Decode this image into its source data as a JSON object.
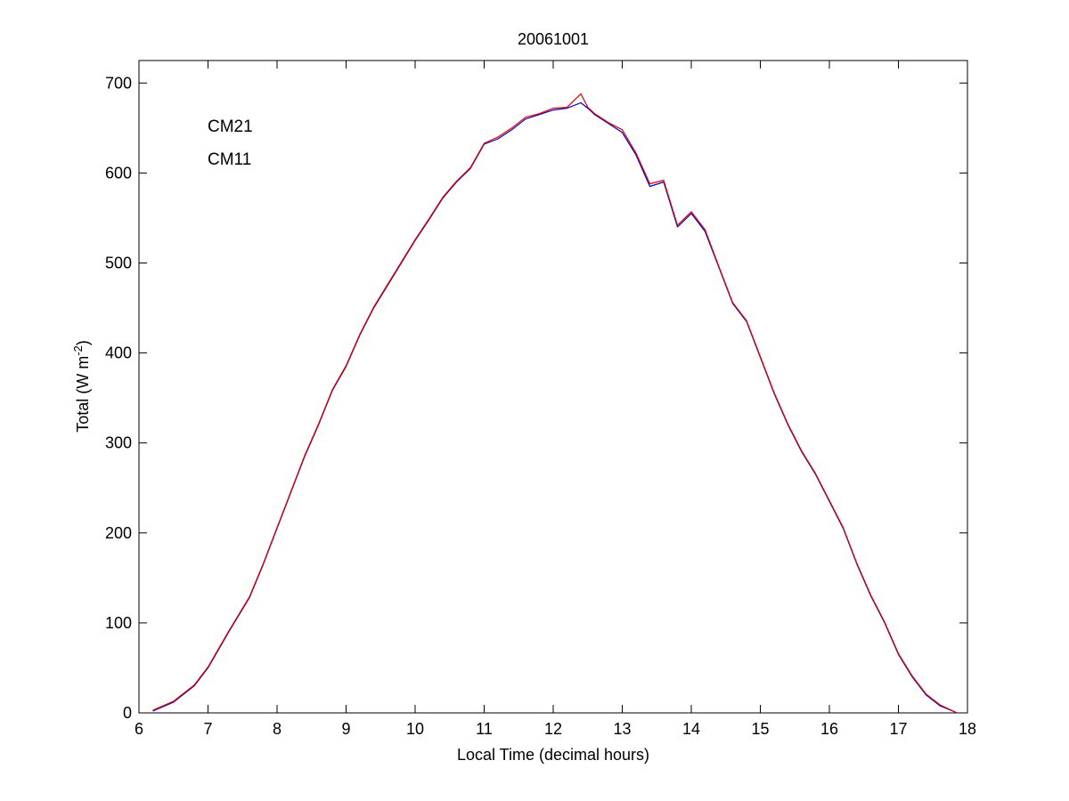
{
  "chart_data": {
    "type": "line",
    "title": "20061001",
    "xlabel": "Local Time (decimal hours)",
    "ylabel": {
      "main": "Total (W m",
      "superscript": "-2",
      "suffix": ")"
    },
    "xlim": [
      6,
      18
    ],
    "ylim": [
      0,
      725
    ],
    "x_ticks": [
      "6",
      "7",
      "8",
      "9",
      "10",
      "11",
      "12",
      "13",
      "14",
      "15",
      "16",
      "17",
      "18"
    ],
    "y_ticks": [
      "0",
      "100",
      "200",
      "300",
      "400",
      "500",
      "600",
      "700"
    ],
    "grid": false,
    "legend_position": "top-left",
    "series": [
      {
        "name": "CM21",
        "color": "#0000c0",
        "x": [
          6.2,
          6.5,
          6.8,
          7.0,
          7.3,
          7.6,
          7.8,
          8.0,
          8.2,
          8.4,
          8.6,
          8.8,
          9.0,
          9.2,
          9.4,
          9.6,
          9.8,
          10.0,
          10.2,
          10.4,
          10.6,
          10.8,
          11.0,
          11.2,
          11.4,
          11.6,
          11.8,
          12.0,
          12.2,
          12.4,
          12.5,
          12.6,
          12.8,
          13.0,
          13.2,
          13.4,
          13.6,
          13.8,
          14.0,
          14.2,
          14.4,
          14.6,
          14.8,
          15.0,
          15.2,
          15.4,
          15.6,
          15.8,
          16.0,
          16.2,
          16.4,
          16.6,
          16.8,
          17.0,
          17.2,
          17.4,
          17.6,
          17.85
        ],
        "y": [
          2,
          12,
          30,
          50,
          90,
          128,
          165,
          205,
          245,
          285,
          320,
          358,
          385,
          420,
          450,
          475,
          500,
          525,
          548,
          572,
          590,
          605,
          632,
          638,
          648,
          660,
          665,
          670,
          672,
          678,
          672,
          665,
          655,
          645,
          620,
          585,
          590,
          540,
          555,
          535,
          495,
          455,
          435,
          395,
          355,
          320,
          290,
          265,
          235,
          205,
          165,
          130,
          100,
          65,
          40,
          20,
          8,
          0
        ]
      },
      {
        "name": "CM11",
        "color": "#e00000",
        "x": [
          6.2,
          6.5,
          6.8,
          7.0,
          7.3,
          7.6,
          7.8,
          8.0,
          8.2,
          8.4,
          8.6,
          8.8,
          9.0,
          9.2,
          9.4,
          9.6,
          9.8,
          10.0,
          10.2,
          10.4,
          10.6,
          10.8,
          11.0,
          11.2,
          11.4,
          11.6,
          11.8,
          12.0,
          12.2,
          12.4,
          12.5,
          12.6,
          12.8,
          13.0,
          13.2,
          13.4,
          13.6,
          13.8,
          14.0,
          14.2,
          14.4,
          14.6,
          14.8,
          15.0,
          15.2,
          15.4,
          15.6,
          15.8,
          16.0,
          16.2,
          16.4,
          16.6,
          16.8,
          17.0,
          17.2,
          17.4,
          17.6,
          17.85
        ],
        "y": [
          3,
          13,
          31,
          51,
          91,
          129,
          166,
          206,
          246,
          286,
          321,
          359,
          386,
          421,
          451,
          476,
          501,
          526,
          549,
          573,
          591,
          606,
          633,
          640,
          650,
          662,
          666,
          672,
          673,
          688,
          673,
          666,
          656,
          648,
          622,
          588,
          592,
          542,
          557,
          537,
          496,
          456,
          436,
          396,
          356,
          321,
          291,
          266,
          236,
          206,
          166,
          131,
          101,
          66,
          41,
          21,
          9,
          0
        ]
      }
    ]
  }
}
